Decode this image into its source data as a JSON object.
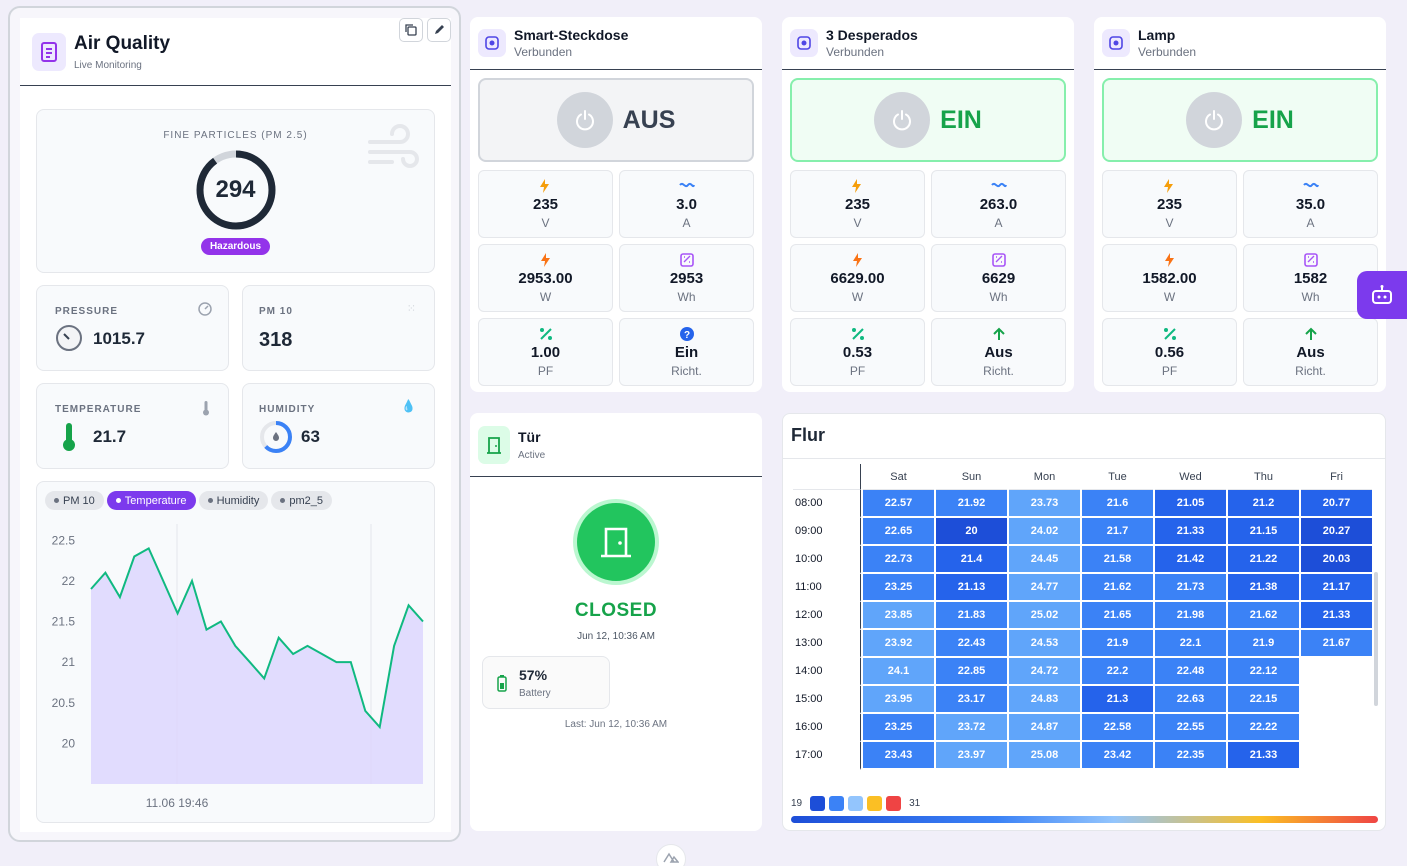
{
  "air": {
    "title": "Air Quality",
    "subtitle": "Live Monitoring",
    "pm25_label": "FINE PARTICLES (PM 2.5)",
    "pm25_value": "294",
    "pm25_status": "Hazardous",
    "pm25_gauge_fraction": 0.9,
    "pressure_label": "PRESSURE",
    "pressure_value": "1015.7",
    "pm10_label": "PM 10",
    "pm10_value": "318",
    "temp_label": "TEMPERATURE",
    "temp_value": "21.7",
    "hum_label": "HUMIDITY",
    "hum_value": "63",
    "hum_fraction": 0.63,
    "tabs": [
      "PM 10",
      "Temperature",
      "Humidity",
      "pm2_5"
    ],
    "active_tab": "Temperature"
  },
  "chart_data": {
    "type": "area",
    "series": [
      {
        "values": [
          21.9,
          22.1,
          21.8,
          22.3,
          22.4,
          22.0,
          21.6,
          22.0,
          21.4,
          21.5,
          21.2,
          21.0,
          20.8,
          21.3,
          21.1,
          21.2,
          21.1,
          21.0,
          21.0,
          20.4,
          20.2,
          21.2,
          21.7,
          21.5
        ]
      }
    ],
    "y_ticks": [
      "22.5",
      "22",
      "21.5",
      "21",
      "20.5",
      "20"
    ],
    "ylim": [
      19.5,
      22.7
    ],
    "x_tick": "11.06 19:46",
    "grid": true
  },
  "plugs": [
    {
      "title": "Smart-Steckdose",
      "status": "Verbunden",
      "state": "AUS",
      "on": false,
      "voltage": "235",
      "current": "3.0",
      "power": "2953.00",
      "energy": "2953",
      "pf": "1.00",
      "dir": "Ein",
      "dir_icon": "question-icon"
    },
    {
      "title": "3 Desperados",
      "status": "Verbunden",
      "state": "EIN",
      "on": true,
      "voltage": "235",
      "current": "263.0",
      "power": "6629.00",
      "energy": "6629",
      "pf": "0.53",
      "dir": "Aus",
      "dir_icon": "arrow-up-icon"
    },
    {
      "title": "Lamp",
      "status": "Verbunden",
      "state": "EIN",
      "on": true,
      "voltage": "235",
      "current": "35.0",
      "power": "1582.00",
      "energy": "1582",
      "pf": "0.56",
      "dir": "Aus",
      "dir_icon": "arrow-up-icon"
    }
  ],
  "units": {
    "v": "V",
    "a": "A",
    "w": "W",
    "wh": "Wh",
    "pf": "PF",
    "dir": "Richt."
  },
  "door": {
    "title": "Tür",
    "subtitle": "Active",
    "state": "CLOSED",
    "time": "Jun 12, 10:36 AM",
    "battery": "57%",
    "battery_label": "Battery",
    "last": "Last: Jun 12, 10:36 AM"
  },
  "heatmap": {
    "title": "Flur",
    "days": [
      "Sat",
      "Sun",
      "Mon",
      "Tue",
      "Wed",
      "Thu",
      "Fri"
    ],
    "rows": [
      {
        "t": "08:00",
        "v": [
          "22.57",
          "21.92",
          "23.73",
          "21.6",
          "21.05",
          "21.2",
          "20.77"
        ]
      },
      {
        "t": "09:00",
        "v": [
          "22.65",
          "20",
          "24.02",
          "21.7",
          "21.33",
          "21.15",
          "20.27"
        ]
      },
      {
        "t": "10:00",
        "v": [
          "22.73",
          "21.4",
          "24.45",
          "21.58",
          "21.42",
          "21.22",
          "20.03"
        ]
      },
      {
        "t": "11:00",
        "v": [
          "23.25",
          "21.13",
          "24.77",
          "21.62",
          "21.73",
          "21.38",
          "21.17"
        ]
      },
      {
        "t": "12:00",
        "v": [
          "23.85",
          "21.83",
          "25.02",
          "21.65",
          "21.98",
          "21.62",
          "21.33"
        ]
      },
      {
        "t": "13:00",
        "v": [
          "23.92",
          "22.43",
          "24.53",
          "21.9",
          "22.1",
          "21.9",
          "21.67"
        ]
      },
      {
        "t": "14:00",
        "v": [
          "24.1",
          "22.85",
          "24.72",
          "22.2",
          "22.48",
          "22.12",
          ""
        ]
      },
      {
        "t": "15:00",
        "v": [
          "23.95",
          "23.17",
          "24.83",
          "21.3",
          "22.63",
          "22.15",
          ""
        ]
      },
      {
        "t": "16:00",
        "v": [
          "23.25",
          "23.72",
          "24.87",
          "22.58",
          "22.55",
          "22.22",
          ""
        ]
      },
      {
        "t": "17:00",
        "v": [
          "23.43",
          "23.97",
          "25.08",
          "23.42",
          "22.35",
          "21.33",
          ""
        ]
      }
    ],
    "legend_min": "19",
    "legend_max": "31",
    "legend_colors": [
      "#1d4ed8",
      "#3b82f6",
      "#93c5fd",
      "#fbbf24",
      "#ef4444"
    ]
  }
}
